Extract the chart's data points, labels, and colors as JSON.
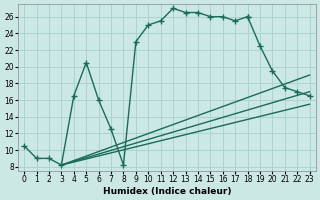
{
  "xlabel": "Humidex (Indice chaleur)",
  "bg_color": "#cce8e5",
  "grid_color": "#aad4d0",
  "line_color": "#1a6b5a",
  "xlim_min": -0.5,
  "xlim_max": 23.5,
  "ylim_min": 7.5,
  "ylim_max": 27.5,
  "xticks": [
    0,
    1,
    2,
    3,
    4,
    5,
    6,
    7,
    8,
    9,
    10,
    11,
    12,
    13,
    14,
    15,
    16,
    17,
    18,
    19,
    20,
    21,
    22,
    23
  ],
  "yticks": [
    8,
    10,
    12,
    14,
    16,
    18,
    20,
    22,
    24,
    26
  ],
  "curve1_x": [
    0,
    1,
    2,
    3,
    4,
    5,
    6,
    7,
    8,
    9,
    10,
    11,
    12,
    13,
    14,
    15,
    16,
    17,
    18
  ],
  "curve1_y": [
    10.5,
    9.0,
    9.0,
    8.2,
    16.5,
    20.5,
    16.0,
    12.5,
    8.2,
    23.0,
    25.0,
    25.5,
    27.0,
    26.5,
    26.5,
    26.0,
    26.0,
    25.5,
    26.0
  ],
  "curve2_x": [
    18,
    19,
    20,
    21,
    22,
    23
  ],
  "curve2_y": [
    26.0,
    22.5,
    19.5,
    17.5,
    17.0,
    16.5
  ],
  "line1_x": [
    3,
    23
  ],
  "line1_y": [
    8.2,
    19.0
  ],
  "line2_x": [
    3,
    23
  ],
  "line2_y": [
    8.2,
    17.0
  ],
  "line3_x": [
    3,
    23
  ],
  "line3_y": [
    8.2,
    15.5
  ]
}
